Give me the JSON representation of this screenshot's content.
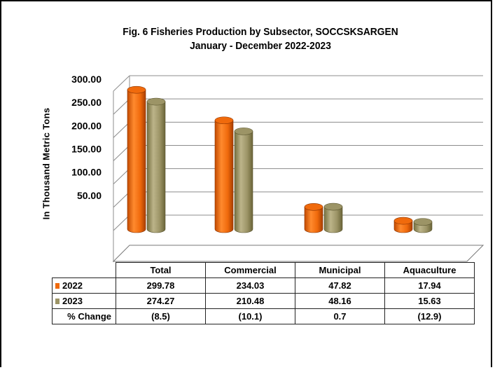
{
  "chart_data": {
    "type": "bar",
    "title": "Fig. 6 Fisheries Production by Subsector, SOCCSKSARGEN",
    "subtitle": "January - December 2022-2023",
    "ylabel": "In Thousand Metric Tons",
    "xlabel": "",
    "ylim": [
      0,
      300
    ],
    "yticks": [
      "50.00",
      "100.00",
      "150.00",
      "200.00",
      "250.00",
      "300.00"
    ],
    "categories": [
      "Total",
      "Commercial",
      "Municipal",
      "Aquaculture"
    ],
    "series": [
      {
        "name": "2022",
        "color": "#f06a0c",
        "values": [
          299.78,
          234.03,
          47.82,
          17.94
        ],
        "labels": [
          "299.78",
          "234.03",
          "47.82",
          "17.94"
        ]
      },
      {
        "name": "2023",
        "color": "#9c9466",
        "values": [
          274.27,
          210.48,
          48.16,
          15.63
        ],
        "labels": [
          "274.27",
          "210.48",
          "48.16",
          "15.63"
        ]
      }
    ],
    "change_row": {
      "label": "% Change",
      "values": [
        "(8.5)",
        "(10.1)",
        "0.7",
        "(12.9)"
      ]
    },
    "grid": true,
    "legend": "table-rows"
  }
}
